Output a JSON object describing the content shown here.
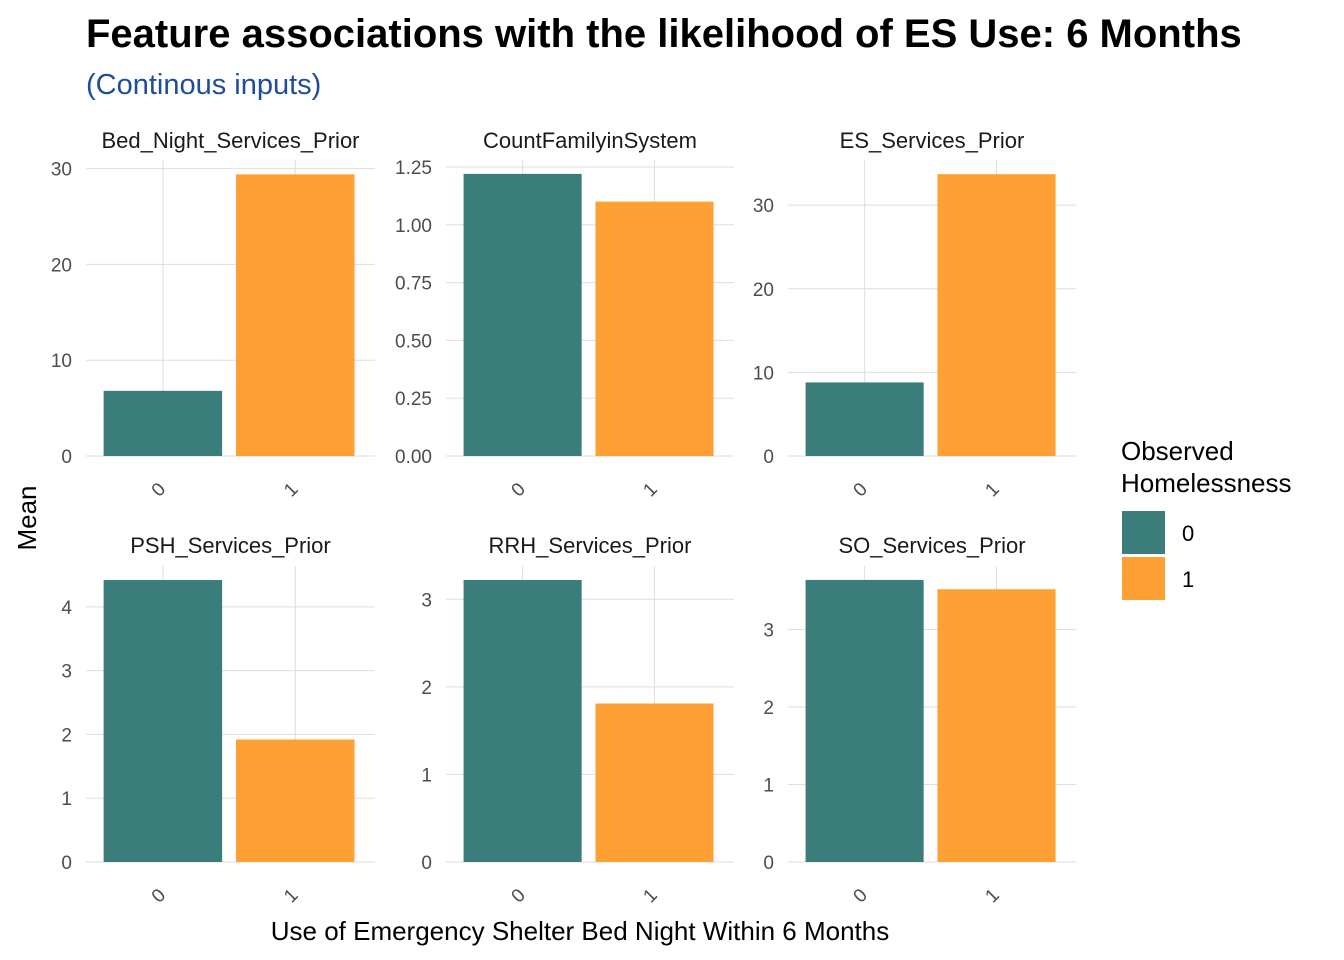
{
  "title": "Feature associations with the likelihood of ES Use: 6 Months",
  "subtitle": "(Continous inputs)",
  "colors": {
    "subtitle": "#1f4e99",
    "series_0": "#3b7d7b",
    "series_1": "#ffa035",
    "grid": "#dedede"
  },
  "chart_data": {
    "type": "bar",
    "xlabel": "Use of Emergency Shelter Bed Night Within 6 Months",
    "ylabel": "Mean",
    "categories": [
      "0",
      "1"
    ],
    "legend": {
      "title_lines": [
        "Observed",
        "Homelessness"
      ],
      "entries": [
        "0",
        "1"
      ],
      "placement": "right"
    },
    "grid": true,
    "facets": [
      {
        "name": "Bed_Night_Services_Prior",
        "values": [
          6.8,
          29.4
        ],
        "ylim": [
          0,
          30.9
        ],
        "yticks": [
          "0",
          "10",
          "20",
          "30"
        ]
      },
      {
        "name": "CountFamilyinSystem",
        "values": [
          1.22,
          1.1
        ],
        "ylim": [
          0,
          1.28
        ],
        "yticks": [
          "0.00",
          "0.25",
          "0.50",
          "0.75",
          "1.00",
          "1.25"
        ]
      },
      {
        "name": "ES_Services_Prior",
        "values": [
          8.8,
          33.7
        ],
        "ylim": [
          0,
          35.4
        ],
        "yticks": [
          "0",
          "10",
          "20",
          "30"
        ]
      },
      {
        "name": "PSH_Services_Prior",
        "values": [
          4.42,
          1.92
        ],
        "ylim": [
          0,
          4.64
        ],
        "yticks": [
          "0",
          "1",
          "2",
          "3",
          "4"
        ]
      },
      {
        "name": "RRH_Services_Prior",
        "values": [
          3.22,
          1.81
        ],
        "ylim": [
          0,
          3.38
        ],
        "yticks": [
          "0",
          "1",
          "2",
          "3"
        ]
      },
      {
        "name": "SO_Services_Prior",
        "values": [
          3.64,
          3.52
        ],
        "ylim": [
          0,
          3.82
        ],
        "yticks": [
          "0",
          "1",
          "2",
          "3"
        ]
      }
    ]
  }
}
